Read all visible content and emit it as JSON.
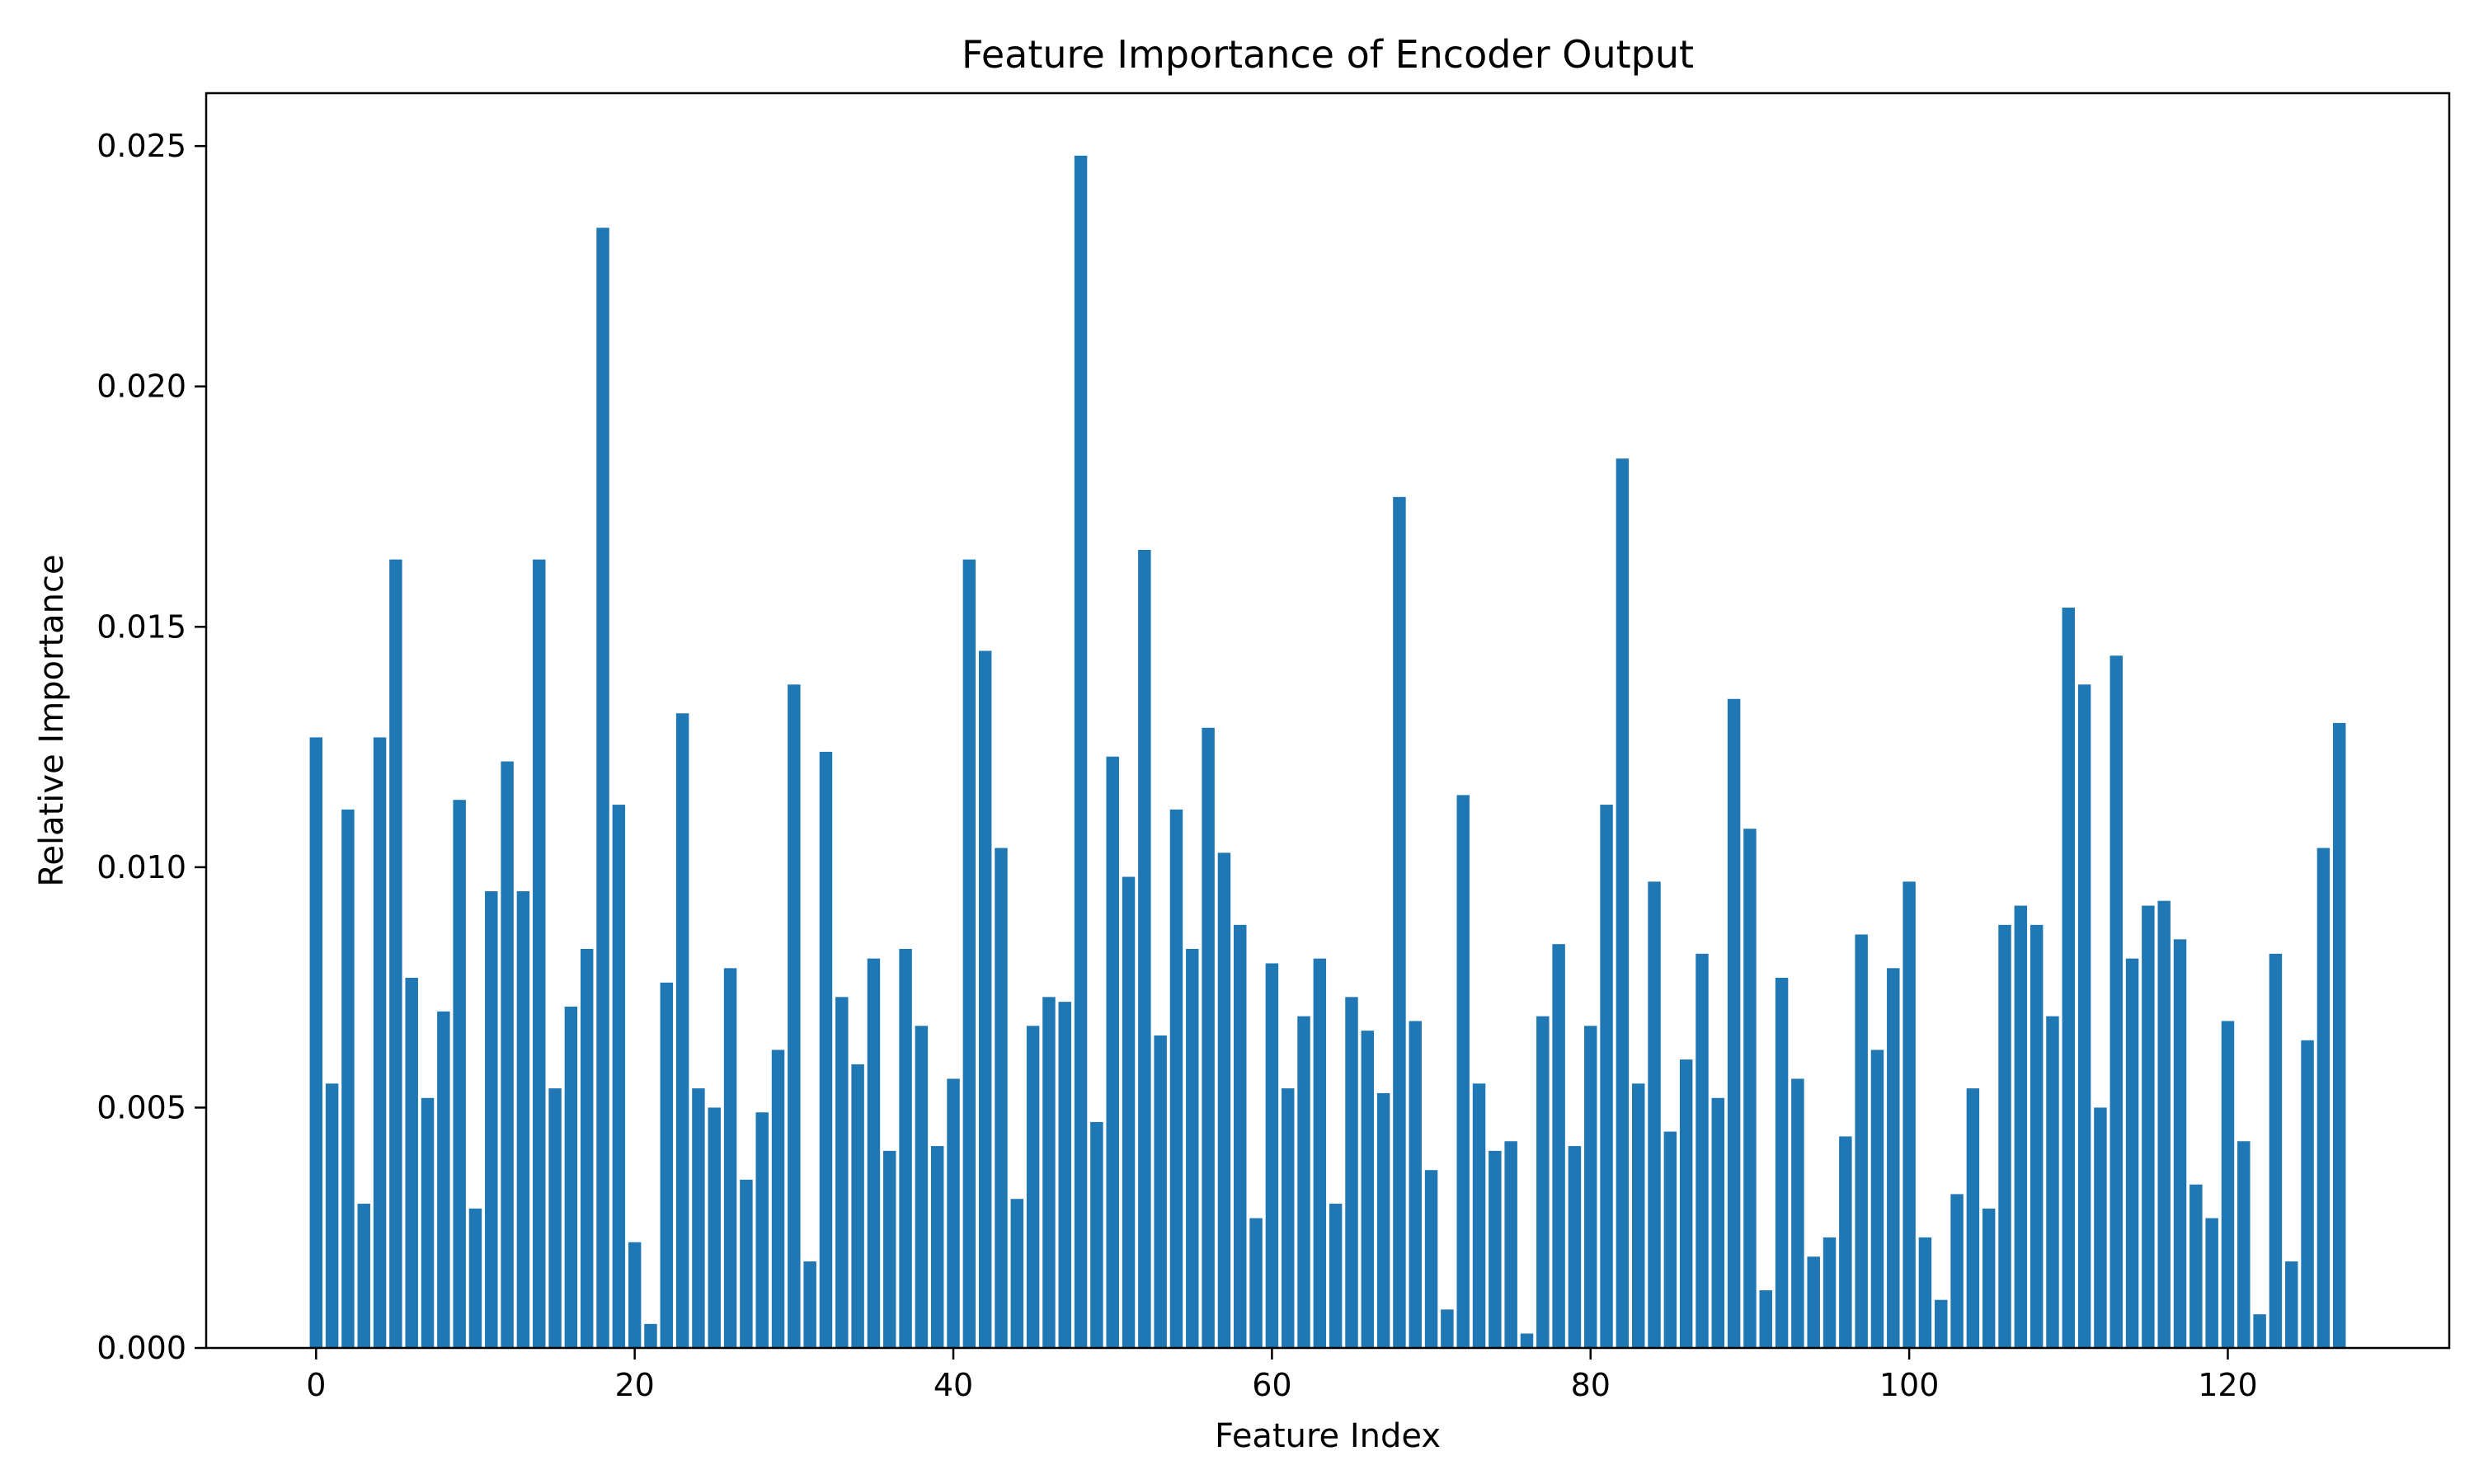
{
  "chart_data": {
    "type": "bar",
    "title": "Feature Importance of Encoder Output",
    "xlabel": "Feature Index",
    "ylabel": "Relative Importance",
    "xlim": [
      -6.9,
      133.9
    ],
    "ylim": [
      0,
      0.0261
    ],
    "xticks": [
      0,
      20,
      40,
      60,
      80,
      100,
      120
    ],
    "xtick_labels": [
      "0",
      "20",
      "40",
      "60",
      "80",
      "100",
      "120"
    ],
    "yticks": [
      0,
      0.005,
      0.01,
      0.015,
      0.02,
      0.025
    ],
    "ytick_labels": [
      "0.000",
      "0.005",
      "0.010",
      "0.015",
      "0.020",
      "0.025"
    ],
    "grid": false,
    "bar_color": "#1f77b4",
    "x": [
      0,
      1,
      2,
      3,
      4,
      5,
      6,
      7,
      8,
      9,
      10,
      11,
      12,
      13,
      14,
      15,
      16,
      17,
      18,
      19,
      20,
      21,
      22,
      23,
      24,
      25,
      26,
      27,
      28,
      29,
      30,
      31,
      32,
      33,
      34,
      35,
      36,
      37,
      38,
      39,
      40,
      41,
      42,
      43,
      44,
      45,
      46,
      47,
      48,
      49,
      50,
      51,
      52,
      53,
      54,
      55,
      56,
      57,
      58,
      59,
      60,
      61,
      62,
      63,
      64,
      65,
      66,
      67,
      68,
      69,
      70,
      71,
      72,
      73,
      74,
      75,
      76,
      77,
      78,
      79,
      80,
      81,
      82,
      83,
      84,
      85,
      86,
      87,
      88,
      89,
      90,
      91,
      92,
      93,
      94,
      95,
      96,
      97,
      98,
      99,
      100,
      101,
      102,
      103,
      104,
      105,
      106,
      107,
      108,
      109,
      110,
      111,
      112,
      113,
      114,
      115,
      116,
      117,
      118,
      119,
      120,
      121,
      122,
      123,
      124,
      125,
      126,
      127
    ],
    "values": [
      0.0127,
      0.0055,
      0.0112,
      0.003,
      0.0127,
      0.0164,
      0.0077,
      0.0052,
      0.007,
      0.0114,
      0.0029,
      0.0095,
      0.0122,
      0.0095,
      0.0164,
      0.0054,
      0.0071,
      0.0083,
      0.0233,
      0.0113,
      0.0022,
      0.0005,
      0.0076,
      0.0132,
      0.0054,
      0.005,
      0.0079,
      0.0035,
      0.0049,
      0.0062,
      0.0138,
      0.0018,
      0.0124,
      0.0073,
      0.0059,
      0.0081,
      0.0041,
      0.0083,
      0.0067,
      0.0042,
      0.0056,
      0.0164,
      0.0145,
      0.0104,
      0.0031,
      0.0067,
      0.0073,
      0.0072,
      0.0248,
      0.0047,
      0.0123,
      0.0098,
      0.0166,
      0.0065,
      0.0112,
      0.0083,
      0.0129,
      0.0103,
      0.0088,
      0.0027,
      0.008,
      0.0054,
      0.0069,
      0.0081,
      0.003,
      0.0073,
      0.0066,
      0.0053,
      0.0177,
      0.0068,
      0.0037,
      0.0008,
      0.0115,
      0.0055,
      0.0041,
      0.0043,
      0.0003,
      0.0069,
      0.0084,
      0.0042,
      0.0067,
      0.0113,
      0.0185,
      0.0055,
      0.0097,
      0.0045,
      0.006,
      0.0082,
      0.0052,
      0.0135,
      0.0108,
      0.0012,
      0.0077,
      0.0056,
      0.0019,
      0.0023,
      0.0044,
      0.0086,
      0.0062,
      0.0079,
      0.0097,
      0.0023,
      0.001,
      0.0032,
      0.0054,
      0.0029,
      0.0088,
      0.0092,
      0.0088,
      0.0069,
      0.0154,
      0.0138,
      0.005,
      0.0144,
      0.0081,
      0.0092,
      0.0093,
      0.0085,
      0.0034,
      0.0027,
      0.0068,
      0.0043,
      0.0007,
      0.0082,
      0.0018,
      0.0064,
      0.0104,
      0.013
    ]
  }
}
